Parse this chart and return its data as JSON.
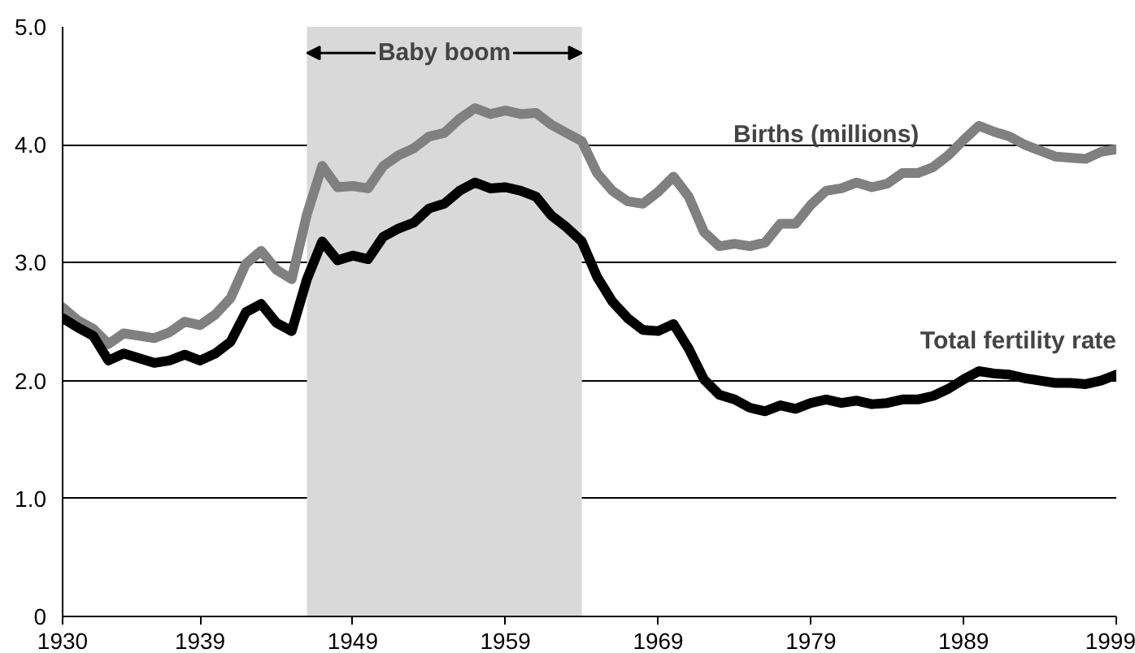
{
  "chart_data": {
    "type": "line",
    "x": [
      1930,
      1931,
      1932,
      1933,
      1934,
      1935,
      1936,
      1937,
      1938,
      1939,
      1940,
      1941,
      1942,
      1943,
      1944,
      1945,
      1946,
      1947,
      1948,
      1949,
      1950,
      1951,
      1952,
      1953,
      1954,
      1955,
      1956,
      1957,
      1958,
      1959,
      1960,
      1961,
      1962,
      1963,
      1964,
      1965,
      1966,
      1967,
      1968,
      1969,
      1970,
      1971,
      1972,
      1973,
      1974,
      1975,
      1976,
      1977,
      1978,
      1979,
      1980,
      1981,
      1982,
      1983,
      1984,
      1985,
      1986,
      1987,
      1988,
      1989,
      1990,
      1991,
      1992,
      1993,
      1994,
      1995,
      1996,
      1997,
      1998,
      1999
    ],
    "series": [
      {
        "name": "Births (millions)",
        "color": "#808080",
        "values": [
          2.62,
          2.51,
          2.44,
          2.31,
          2.4,
          2.38,
          2.36,
          2.41,
          2.5,
          2.47,
          2.56,
          2.7,
          2.99,
          3.1,
          2.94,
          2.86,
          3.41,
          3.82,
          3.64,
          3.65,
          3.63,
          3.82,
          3.91,
          3.97,
          4.07,
          4.1,
          4.22,
          4.31,
          4.26,
          4.29,
          4.26,
          4.27,
          4.17,
          4.1,
          4.03,
          3.76,
          3.61,
          3.52,
          3.5,
          3.6,
          3.73,
          3.56,
          3.26,
          3.14,
          3.16,
          3.14,
          3.17,
          3.33,
          3.33,
          3.49,
          3.61,
          3.63,
          3.68,
          3.64,
          3.67,
          3.76,
          3.76,
          3.81,
          3.91,
          4.04,
          4.16,
          4.11,
          4.07,
          4.0,
          3.95,
          3.9,
          3.89,
          3.88,
          3.94,
          3.96
        ]
      },
      {
        "name": "Total fertility rate",
        "color": "#000000",
        "values": [
          2.53,
          2.45,
          2.38,
          2.17,
          2.23,
          2.19,
          2.15,
          2.17,
          2.22,
          2.17,
          2.23,
          2.33,
          2.58,
          2.65,
          2.49,
          2.42,
          2.86,
          3.18,
          3.02,
          3.06,
          3.03,
          3.22,
          3.29,
          3.34,
          3.46,
          3.5,
          3.61,
          3.68,
          3.63,
          3.64,
          3.61,
          3.56,
          3.4,
          3.3,
          3.18,
          2.88,
          2.67,
          2.53,
          2.43,
          2.42,
          2.48,
          2.27,
          2.01,
          1.88,
          1.84,
          1.77,
          1.74,
          1.79,
          1.76,
          1.81,
          1.84,
          1.81,
          1.83,
          1.8,
          1.81,
          1.84,
          1.84,
          1.87,
          1.93,
          2.01,
          2.08,
          2.06,
          2.05,
          2.02,
          2.0,
          1.98,
          1.98,
          1.97,
          2.0,
          2.05
        ]
      }
    ],
    "xlim": [
      1930,
      1999
    ],
    "xticks": [
      1930,
      1939,
      1949,
      1959,
      1969,
      1979,
      1989,
      1999
    ],
    "ylim": [
      0,
      5
    ],
    "yticks": [
      {
        "value": 0,
        "label": "0"
      },
      {
        "value": 1,
        "label": "1.0"
      },
      {
        "value": 2,
        "label": "2.0"
      },
      {
        "value": 3,
        "label": "3.0"
      },
      {
        "value": 4,
        "label": "4.0"
      },
      {
        "value": 5,
        "label": "5.0"
      }
    ],
    "grid": "y",
    "line_style": "solid",
    "bands": [
      {
        "axis": "x",
        "from": 1946,
        "to": 1964,
        "label": "Baby boom",
        "color": "#d9d9d9"
      }
    ]
  }
}
